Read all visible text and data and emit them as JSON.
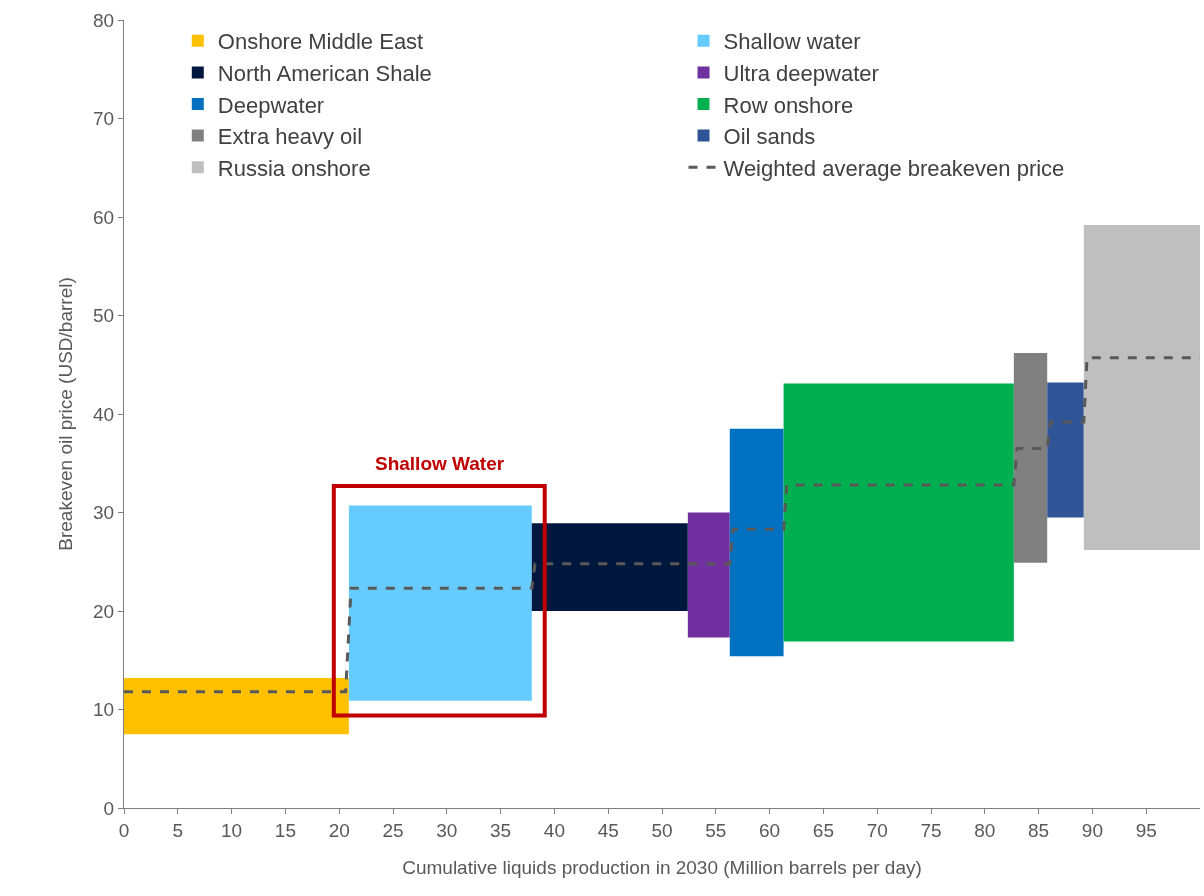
{
  "chart_data": {
    "type": "bar",
    "xlabel": "Cumulative liquids production in 2030 (Million barrels per day)",
    "ylabel": "Breakeven oil price (USD/barrel)",
    "xlim": [
      0,
      100
    ],
    "xticks": [
      0,
      5,
      10,
      15,
      20,
      25,
      30,
      35,
      40,
      45,
      50,
      55,
      60,
      65,
      70,
      75,
      80,
      85,
      90,
      95
    ],
    "ylim": [
      0,
      80
    ],
    "yticks": [
      0,
      10,
      20,
      30,
      40,
      50,
      60,
      70,
      80
    ],
    "grid": false,
    "legend": "top",
    "series": [
      {
        "name": "Onshore Middle East",
        "color": "#ffc000",
        "x": [
          10.45
        ],
        "base": [
          7.5
        ],
        "values": [
          5.7
        ]
      },
      {
        "name": "Shallow water",
        "color": "#66ccff",
        "x": [
          29.4
        ],
        "base": [
          10.9
        ],
        "values": [
          19.8
        ]
      },
      {
        "name": "North American Shale",
        "color": "#00173d",
        "x": [
          45.15
        ],
        "base": [
          20.0
        ],
        "values": [
          8.9
        ]
      },
      {
        "name": "Ultra deepwater",
        "color": "#7030a0",
        "x": [
          54.35
        ],
        "base": [
          17.3
        ],
        "values": [
          12.7
        ]
      },
      {
        "name": "Deepwater",
        "color": "#0070c0",
        "x": [
          58.8
        ],
        "base": [
          15.4
        ],
        "values": [
          23.1
        ]
      },
      {
        "name": "Row onshore",
        "color": "#00b050",
        "x": [
          72.0
        ],
        "base": [
          16.9
        ],
        "values": [
          26.2
        ]
      },
      {
        "name": "Extra heavy oil",
        "color": "#808080",
        "x": [
          84.25
        ],
        "base": [
          24.9
        ],
        "values": [
          21.3
        ]
      },
      {
        "name": "Oil sands",
        "color": "#2f5597",
        "x": [
          87.5
        ],
        "base": [
          29.5
        ],
        "values": [
          13.7
        ]
      },
      {
        "name": "Russia onshore",
        "color": "#bfbfbf",
        "x": [
          94.6
        ],
        "base": [
          26.2
        ],
        "values": [
          33.0
        ]
      },
      {
        "name": "Weighted average breakeven price",
        "color": "#595959",
        "type": "line",
        "line_style": "dashed",
        "marker": "none",
        "x": [
          0,
          20.6,
          21.1,
          37.9,
          38.2,
          56.3,
          56.6,
          61.3,
          61.6,
          82.7,
          83.0,
          85.8,
          86.1,
          89.2,
          89.5,
          100
        ],
        "values": [
          11.8,
          11.8,
          22.3,
          22.3,
          24.8,
          24.8,
          28.3,
          28.3,
          32.8,
          32.8,
          36.5,
          36.5,
          39.2,
          39.2,
          45.7,
          45.7
        ]
      }
    ],
    "annotations": [
      "Shallow Water"
    ]
  }
}
